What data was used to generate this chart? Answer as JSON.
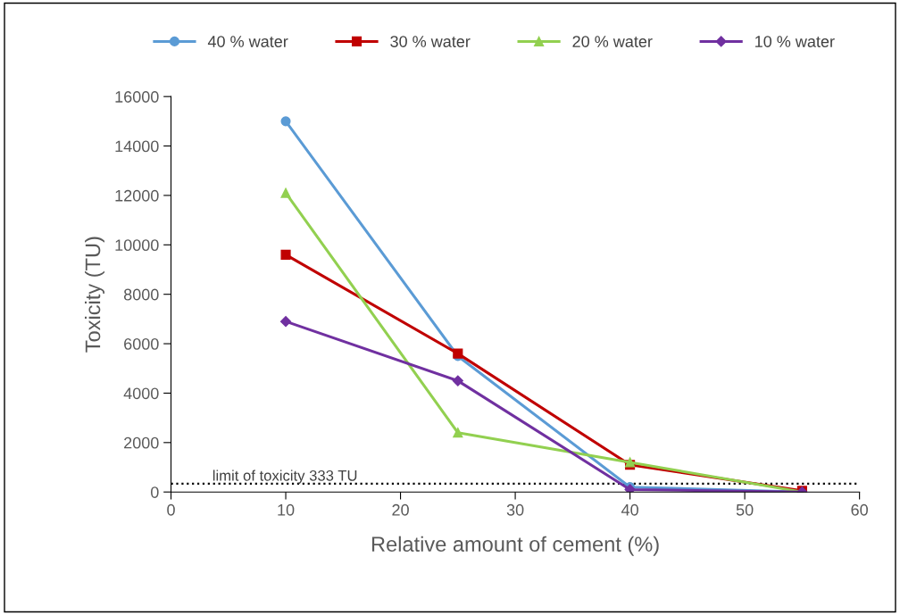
{
  "chart_data": {
    "type": "line",
    "xlabel": "Relative amount of cement (%)",
    "ylabel": "Toxicity (TU)",
    "x": [
      10,
      25,
      40,
      55
    ],
    "series": [
      {
        "name": "40 % water",
        "color": "#5b9bd5",
        "marker": "circle",
        "values": [
          15000,
          5500,
          200,
          0
        ]
      },
      {
        "name": "30 % water",
        "color": "#c00000",
        "marker": "square",
        "values": [
          9600,
          5600,
          1100,
          50
        ]
      },
      {
        "name": "20 % water",
        "color": "#92d050",
        "marker": "triangle",
        "values": [
          12100,
          2400,
          1200,
          0
        ]
      },
      {
        "name": "10 % water",
        "color": "#7030a0",
        "marker": "diamond",
        "values": [
          6900,
          4500,
          100,
          0
        ]
      }
    ],
    "xlim": [
      0,
      60
    ],
    "xticks": [
      0,
      10,
      20,
      30,
      40,
      50,
      60
    ],
    "ylim": [
      0,
      16000
    ],
    "yticks": [
      0,
      2000,
      4000,
      6000,
      8000,
      10000,
      12000,
      14000,
      16000
    ],
    "ref_lines": [
      {
        "axis": "y",
        "value": 333,
        "label": "limit of toxicity 333 TU",
        "color": "#000000",
        "line_style": "dotted"
      }
    ],
    "grid": false,
    "legend": "top",
    "line_style": "solid"
  }
}
